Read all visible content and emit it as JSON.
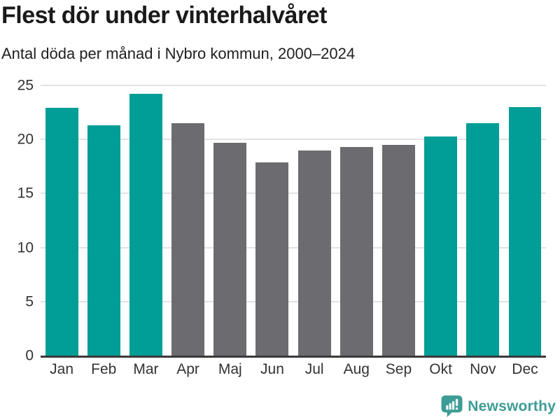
{
  "header": {
    "title": "Flest dör under vinterhalvåret",
    "subtitle": "Antal döda per månad i Nybro kommun, 2000–2024"
  },
  "chart_data": {
    "type": "bar",
    "title": "Flest dör under vinterhalvåret",
    "subtitle": "Antal döda per månad i Nybro kommun, 2000–2024",
    "categories": [
      "Jan",
      "Feb",
      "Mar",
      "Apr",
      "Maj",
      "Jun",
      "Jul",
      "Aug",
      "Sep",
      "Okt",
      "Nov",
      "Dec"
    ],
    "values": [
      22.9,
      21.3,
      24.2,
      21.5,
      19.7,
      17.9,
      19.0,
      19.3,
      19.5,
      20.3,
      21.5,
      23.0
    ],
    "highlighted": [
      true,
      true,
      true,
      false,
      false,
      false,
      false,
      false,
      false,
      true,
      true,
      true
    ],
    "xlabel": "",
    "ylabel": "",
    "ylim": [
      0,
      25
    ],
    "yticks": [
      0,
      5,
      10,
      15,
      20,
      25
    ],
    "grid": true,
    "legend": "none",
    "colors": {
      "highlight_bar": "#009e96",
      "base_bar": "#6c6c70",
      "gridline": "#e2e2e2",
      "axis_line": "#3a3a3a"
    }
  },
  "footer": {
    "logo_text": "Newsworthy",
    "logo_color": "#3d9c95"
  }
}
